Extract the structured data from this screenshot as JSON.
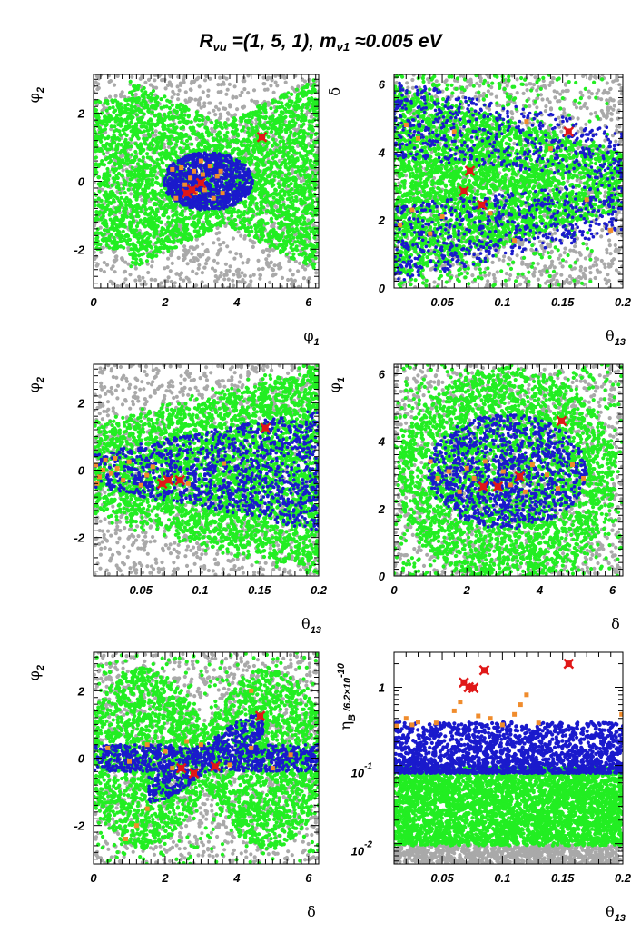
{
  "title": {
    "main": "R",
    "sub1": "νu",
    "mid": " =(1, 5, 1), m",
    "sub2": "ν1",
    "end": " ≈0.005 eV"
  },
  "colors": {
    "gray": "#a9a9a9",
    "green": "#22ee22",
    "blue": "#1a1acc",
    "orange": "#f08c2c",
    "red": "#e01818"
  },
  "chart_data": [
    {
      "id": "p1",
      "type": "scatter",
      "xlabel": {
        "base": "φ",
        "sub": "1"
      },
      "ylabel": {
        "base": "φ",
        "sub": "2"
      },
      "xlim": [
        0,
        6.283
      ],
      "ylim": [
        -3.14159,
        3.14159
      ],
      "xticks": [
        {
          "v": 0,
          "l": "0"
        },
        {
          "v": 2,
          "l": "2"
        },
        {
          "v": 4,
          "l": "4"
        },
        {
          "v": 6,
          "l": "6"
        }
      ],
      "yticks": [
        {
          "v": -2,
          "l": "-2"
        },
        {
          "v": 0,
          "l": "0"
        },
        {
          "v": 2,
          "l": "2"
        }
      ],
      "red_points": [
        [
          2.6,
          -0.35
        ],
        [
          2.75,
          -0.25
        ],
        [
          3.0,
          -0.05
        ],
        [
          4.7,
          1.3
        ]
      ],
      "orange_points": [
        [
          2.2,
          0.35
        ],
        [
          2.45,
          0.4
        ],
        [
          2.55,
          -0.1
        ],
        [
          2.8,
          0.3
        ],
        [
          2.85,
          -0.35
        ],
        [
          3.05,
          0.2
        ],
        [
          3.1,
          -0.25
        ],
        [
          3.25,
          0.45
        ],
        [
          3.35,
          -0.5
        ],
        [
          3.45,
          0.15
        ],
        [
          3.6,
          -0.35
        ],
        [
          2.3,
          -0.5
        ],
        [
          3.0,
          0.6
        ],
        [
          2.7,
          0.1
        ],
        [
          3.55,
          0.3
        ]
      ]
    },
    {
      "id": "p2",
      "type": "scatter",
      "xlabel": {
        "base": "θ",
        "sub": "13"
      },
      "ylabel": {
        "base": "δ",
        "sub": ""
      },
      "xlim": [
        0.01,
        0.2
      ],
      "ylim": [
        0,
        6.283
      ],
      "xticks": [
        {
          "v": 0.05,
          "l": "0.05"
        },
        {
          "v": 0.1,
          "l": "0.1"
        },
        {
          "v": 0.15,
          "l": "0.15"
        },
        {
          "v": 0.2,
          "l": "0.2"
        }
      ],
      "yticks": [
        {
          "v": 0,
          "l": "0"
        },
        {
          "v": 2,
          "l": "2"
        },
        {
          "v": 4,
          "l": "4"
        },
        {
          "v": 6,
          "l": "6"
        }
      ],
      "red_points": [
        [
          0.068,
          2.85
        ],
        [
          0.073,
          3.45
        ],
        [
          0.083,
          2.45
        ],
        [
          0.155,
          4.6
        ]
      ],
      "orange_points": [
        [
          0.015,
          1.85
        ],
        [
          0.02,
          4.8
        ],
        [
          0.03,
          4.4
        ],
        [
          0.04,
          1.6
        ],
        [
          0.05,
          2.1
        ],
        [
          0.06,
          4.6
        ],
        [
          0.09,
          2.2
        ],
        [
          0.11,
          1.4
        ],
        [
          0.12,
          4.9
        ],
        [
          0.14,
          4.1
        ],
        [
          0.17,
          2.6
        ],
        [
          0.19,
          1.7
        ],
        [
          0.025,
          2.3
        ]
      ]
    },
    {
      "id": "p3",
      "type": "scatter",
      "xlabel": {
        "base": "θ",
        "sub": "13"
      },
      "ylabel": {
        "base": "φ",
        "sub": "2"
      },
      "xlim": [
        0.01,
        0.2
      ],
      "ylim": [
        -3.14159,
        3.14159
      ],
      "xticks": [
        {
          "v": 0.05,
          "l": "0.05"
        },
        {
          "v": 0.1,
          "l": "0.1"
        },
        {
          "v": 0.15,
          "l": "0.15"
        },
        {
          "v": 0.2,
          "l": "0.2"
        }
      ],
      "yticks": [
        {
          "v": -2,
          "l": "-2"
        },
        {
          "v": 0,
          "l": "0"
        },
        {
          "v": 2,
          "l": "2"
        }
      ],
      "red_points": [
        [
          0.068,
          -0.4
        ],
        [
          0.073,
          -0.3
        ],
        [
          0.083,
          -0.3
        ],
        [
          0.155,
          1.25
        ]
      ],
      "orange_points": [
        [
          0.012,
          0.15
        ],
        [
          0.015,
          -0.2
        ],
        [
          0.02,
          0.3
        ],
        [
          0.025,
          -0.1
        ],
        [
          0.03,
          0.05
        ],
        [
          0.035,
          -0.3
        ],
        [
          0.04,
          0.25
        ],
        [
          0.055,
          -0.15
        ],
        [
          0.06,
          0.1
        ],
        [
          0.09,
          -0.4
        ],
        [
          0.12,
          0.2
        ],
        [
          0.013,
          -0.4
        ],
        [
          0.018,
          0.0
        ],
        [
          0.028,
          0.35
        ],
        [
          0.05,
          -0.45
        ]
      ]
    },
    {
      "id": "p4",
      "type": "scatter",
      "xlabel": {
        "base": "δ",
        "sub": ""
      },
      "ylabel": {
        "base": "φ",
        "sub": "1"
      },
      "xlim": [
        0,
        6.283
      ],
      "ylim": [
        0,
        6.283
      ],
      "xticks": [
        {
          "v": 0,
          "l": "0"
        },
        {
          "v": 2,
          "l": "2"
        },
        {
          "v": 4,
          "l": "4"
        },
        {
          "v": 6,
          "l": "6"
        }
      ],
      "yticks": [
        {
          "v": 0,
          "l": "0"
        },
        {
          "v": 2,
          "l": "2"
        },
        {
          "v": 4,
          "l": "4"
        },
        {
          "v": 6,
          "l": "6"
        }
      ],
      "red_points": [
        [
          2.45,
          2.65
        ],
        [
          2.85,
          2.65
        ],
        [
          3.45,
          2.95
        ],
        [
          4.6,
          4.6
        ]
      ],
      "orange_points": [
        [
          1.2,
          2.9
        ],
        [
          1.5,
          3.1
        ],
        [
          1.8,
          2.5
        ],
        [
          2.0,
          3.2
        ],
        [
          2.2,
          2.9
        ],
        [
          2.5,
          3.4
        ],
        [
          3.0,
          3.1
        ],
        [
          3.2,
          2.7
        ],
        [
          3.8,
          3.3
        ],
        [
          4.2,
          3.0
        ],
        [
          4.5,
          2.6
        ],
        [
          4.9,
          3.3
        ],
        [
          5.2,
          2.9
        ],
        [
          1.0,
          3.4
        ],
        [
          3.6,
          2.5
        ]
      ]
    },
    {
      "id": "p5",
      "type": "scatter",
      "xlabel": {
        "base": "δ",
        "sub": ""
      },
      "ylabel": {
        "base": "φ",
        "sub": "2"
      },
      "xlim": [
        0,
        6.283
      ],
      "ylim": [
        -3.14159,
        3.14159
      ],
      "xticks": [
        {
          "v": 0,
          "l": "0"
        },
        {
          "v": 2,
          "l": "2"
        },
        {
          "v": 4,
          "l": "4"
        },
        {
          "v": 6,
          "l": "6"
        }
      ],
      "yticks": [
        {
          "v": -2,
          "l": "-2"
        },
        {
          "v": 0,
          "l": "0"
        },
        {
          "v": 2,
          "l": "2"
        }
      ],
      "red_points": [
        [
          2.45,
          -0.3
        ],
        [
          2.8,
          -0.45
        ],
        [
          3.4,
          -0.25
        ],
        [
          4.65,
          1.25
        ]
      ],
      "orange_points": [
        [
          0.4,
          0.3
        ],
        [
          1.0,
          -0.1
        ],
        [
          1.5,
          0.4
        ],
        [
          2.0,
          0.2
        ],
        [
          2.2,
          -0.3
        ],
        [
          3.0,
          0.4
        ],
        [
          3.8,
          -0.2
        ],
        [
          4.4,
          0.3
        ],
        [
          5.0,
          -0.3
        ],
        [
          5.5,
          0.1
        ],
        [
          1.2,
          -2.0
        ],
        [
          1.5,
          -1.5
        ],
        [
          0.9,
          -2.4
        ],
        [
          4.4,
          2.0
        ],
        [
          2.6,
          0.5
        ]
      ]
    },
    {
      "id": "p6",
      "type": "scatter",
      "xlabel": {
        "base": "θ",
        "sub": "13"
      },
      "ylabel": {
        "base": "η",
        "sub": "B",
        "suffix": " /6.2×10",
        "sup": "-10"
      },
      "xlim": [
        0.01,
        0.2
      ],
      "ylim": [
        0.0055,
        2.8
      ],
      "yscale": "log",
      "xticks": [
        {
          "v": 0.05,
          "l": "0.05"
        },
        {
          "v": 0.1,
          "l": "0.1"
        },
        {
          "v": 0.15,
          "l": "0.15"
        },
        {
          "v": 0.2,
          "l": "0.2"
        }
      ],
      "yticks": [
        {
          "v": 1,
          "l": "1",
          "b": "1",
          "e": ""
        },
        {
          "v": 0.1,
          "l": "10-1",
          "b": "10",
          "e": "-1"
        },
        {
          "v": 0.01,
          "l": "10-2",
          "b": "10",
          "e": "-2"
        }
      ],
      "bands": {
        "green": [
          0.0095,
          0.095
        ],
        "blue": [
          0.08,
          0.36
        ],
        "gray": [
          0.0055,
          0.0098
        ]
      },
      "red_points": [
        [
          0.068,
          1.15
        ],
        [
          0.072,
          1.0
        ],
        [
          0.076,
          0.98
        ],
        [
          0.085,
          1.65
        ],
        [
          0.155,
          2.0
        ]
      ],
      "orange_points": [
        [
          0.012,
          0.32
        ],
        [
          0.02,
          0.4
        ],
        [
          0.03,
          0.36
        ],
        [
          0.045,
          0.35
        ],
        [
          0.06,
          0.5
        ],
        [
          0.065,
          0.65
        ],
        [
          0.08,
          0.43
        ],
        [
          0.09,
          0.4
        ],
        [
          0.11,
          0.45
        ],
        [
          0.115,
          0.6
        ],
        [
          0.12,
          0.8
        ],
        [
          0.13,
          0.35
        ],
        [
          0.199,
          0.45
        ],
        [
          0.025,
          0.33
        ],
        [
          0.1,
          0.33
        ]
      ]
    }
  ]
}
